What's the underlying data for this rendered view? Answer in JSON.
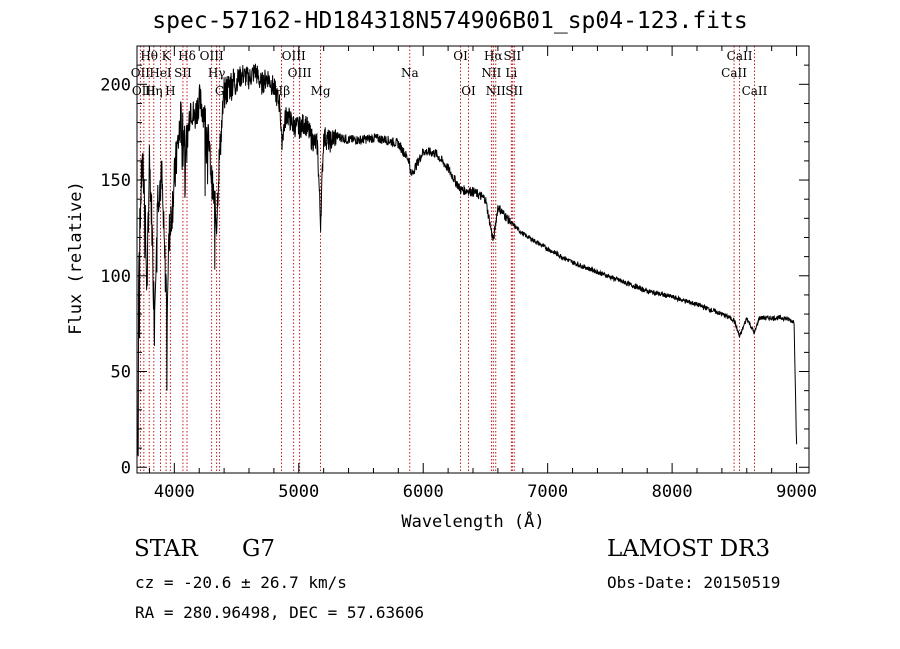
{
  "chart_data": {
    "type": "line",
    "title": "spec-57162-HD184318N574906B01_sp04-123.fits",
    "xlabel": "Wavelength (Å)",
    "ylabel": "Flux (relative)",
    "xlim": [
      3700,
      9100
    ],
    "ylim": [
      -3,
      220
    ],
    "xticks": [
      4000,
      5000,
      6000,
      7000,
      8000,
      9000
    ],
    "yticks": [
      0,
      50,
      100,
      150,
      200
    ],
    "xtick_labels": [
      "4000",
      "5000",
      "6000",
      "7000",
      "8000",
      "9000"
    ],
    "ytick_labels": [
      "0",
      "50",
      "100",
      "150",
      "200"
    ],
    "series": [
      {
        "name": "flux",
        "x": [
          3700,
          3720,
          3740,
          3760,
          3780,
          3800,
          3820,
          3840,
          3860,
          3880,
          3900,
          3920,
          3940,
          3960,
          3980,
          4000,
          4020,
          4050,
          4080,
          4100,
          4130,
          4160,
          4200,
          4240,
          4280,
          4300,
          4320,
          4340,
          4360,
          4400,
          4450,
          4500,
          4550,
          4600,
          4650,
          4700,
          4750,
          4800,
          4850,
          4861,
          4900,
          4950,
          5000,
          5050,
          5100,
          5150,
          5175,
          5200,
          5250,
          5300,
          5400,
          5500,
          5600,
          5700,
          5800,
          5890,
          5900,
          6000,
          6100,
          6200,
          6300,
          6400,
          6500,
          6563,
          6600,
          6700,
          6800,
          6900,
          7000,
          7200,
          7400,
          7600,
          7800,
          8000,
          8200,
          8400,
          8498,
          8542,
          8600,
          8662,
          8700,
          8800,
          8900,
          8980,
          9000
        ],
        "y": [
          60,
          118,
          158,
          145,
          92,
          162,
          128,
          75,
          138,
          148,
          150,
          112,
          88,
          122,
          135,
          148,
          164,
          180,
          175,
          168,
          190,
          182,
          192,
          185,
          168,
          150,
          140,
          128,
          160,
          195,
          200,
          202,
          205,
          203,
          207,
          200,
          204,
          198,
          189,
          170,
          185,
          179,
          177,
          180,
          172,
          168,
          128,
          173,
          170,
          173,
          171,
          171,
          172,
          171,
          169,
          160,
          152,
          165,
          164,
          156,
          145,
          144,
          140,
          118,
          136,
          128,
          122,
          118,
          114,
          107,
          102,
          97,
          92,
          89,
          85,
          80,
          77,
          68,
          78,
          70,
          78,
          78,
          78,
          76,
          12
        ]
      }
    ],
    "lines": [
      {
        "label": "Hθ",
        "wavelength": 3798,
        "row": 0
      },
      {
        "label": "OII",
        "wavelength": 3727,
        "row": 1
      },
      {
        "label": "OIII",
        "wavelength": 3755,
        "row": 2
      },
      {
        "label": "Hη",
        "wavelength": 3835,
        "row": 2
      },
      {
        "label": "HeI",
        "wavelength": 3889,
        "row": 1
      },
      {
        "label": "K",
        "wavelength": 3934,
        "row": 0
      },
      {
        "label": "H",
        "wavelength": 3968,
        "row": 2
      },
      {
        "label": "SII",
        "wavelength": 4069,
        "row": 1
      },
      {
        "label": "Hδ",
        "wavelength": 4102,
        "row": 0
      },
      {
        "label": "OIII",
        "wavelength": 4300,
        "row": 0
      },
      {
        "label": "Hγ",
        "wavelength": 4340,
        "row": 1
      },
      {
        "label": "G",
        "wavelength": 4364,
        "row": 2
      },
      {
        "label": "Hβ",
        "wavelength": 4861,
        "row": 2
      },
      {
        "label": "OIII",
        "wavelength": 4959,
        "row": 0
      },
      {
        "label": "OIII",
        "wavelength": 5007,
        "row": 1
      },
      {
        "label": "Mg",
        "wavelength": 5175,
        "row": 2
      },
      {
        "label": "Na",
        "wavelength": 5892,
        "row": 1
      },
      {
        "label": "OI",
        "wavelength": 6300,
        "row": 0
      },
      {
        "label": "OI",
        "wavelength": 6364,
        "row": 2
      },
      {
        "label": "Hα",
        "wavelength": 6563,
        "row": 0
      },
      {
        "label": "NII",
        "wavelength": 6548,
        "row": 1
      },
      {
        "label": "NII",
        "wavelength": 6583,
        "row": 2
      },
      {
        "label": "SII",
        "wavelength": 6716,
        "row": 0
      },
      {
        "label": "Li",
        "wavelength": 6708,
        "row": 1
      },
      {
        "label": "SII",
        "wavelength": 6731,
        "row": 2
      },
      {
        "label": "CaII",
        "wavelength": 8498,
        "row": 1
      },
      {
        "label": "CaII",
        "wavelength": 8542,
        "row": 0
      },
      {
        "label": "CaII",
        "wavelength": 8662,
        "row": 2
      }
    ],
    "colors": {
      "spectrum": "#000000",
      "line_markers": "#c00000",
      "axes": "#000000"
    }
  },
  "info": {
    "class": "STAR",
    "subclass": "G7",
    "survey": "LAMOST DR3",
    "cz": "cz = -20.6 ± 26.7 km/s",
    "obs_date": "Obs-Date: 20150519",
    "coords": "RA = 280.96498, DEC =  57.63606"
  }
}
